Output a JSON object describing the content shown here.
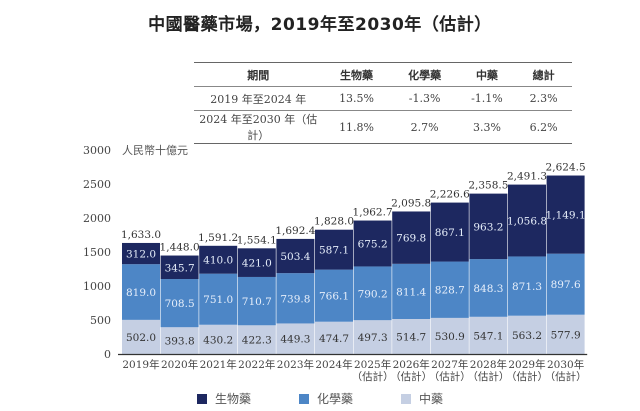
{
  "title": "中國醫藥市場，2019年至2030年（估計）",
  "growth_table": {
    "headers": [
      "期間",
      "生物藥",
      "化學藥",
      "中藥",
      "總計"
    ],
    "rows": [
      [
        "2019 年至2024 年",
        "13.5%",
        "-1.3%",
        "-1.1%",
        "2.3%"
      ],
      [
        "2024 年至2030 年（估計）",
        "11.8%",
        "2.7%",
        "3.3%",
        "6.2%"
      ]
    ]
  },
  "chart_data": {
    "type": "bar",
    "stacked": true,
    "title": "中國醫藥市場，2019年至2030年（估計）",
    "ylabel": "人民幣十億元",
    "xlabel": "",
    "ylim": [
      0,
      3000
    ],
    "yticks": [
      0,
      500,
      1000,
      1500,
      2000,
      2500,
      3000
    ],
    "grid": false,
    "legend": "bottom",
    "categories": [
      [
        "2019年"
      ],
      [
        "2020年"
      ],
      [
        "2021年"
      ],
      [
        "2022年"
      ],
      [
        "2023年"
      ],
      [
        "2024年"
      ],
      [
        "2025年",
        "（估計）"
      ],
      [
        "2026年",
        "（估計）"
      ],
      [
        "2027年",
        "（估計）"
      ],
      [
        "2028年",
        "（估計）"
      ],
      [
        "2029年",
        "（估計）"
      ],
      [
        "2030年",
        "（估計）"
      ]
    ],
    "series": [
      {
        "name": "中藥",
        "color": "#c5cfe3",
        "label_color": "#333333",
        "values": [
          502.0,
          393.8,
          430.2,
          422.3,
          449.3,
          474.7,
          497.3,
          514.7,
          530.9,
          547.1,
          563.2,
          577.9
        ],
        "labels": [
          "502.0",
          "393.8",
          "430.2",
          "422.3",
          "449.3",
          "474.7",
          "497.3",
          "514.7",
          "530.9",
          "547.1",
          "563.2",
          "577.9"
        ]
      },
      {
        "name": "化學藥",
        "color": "#4d86c6",
        "label_color": "#e6eefa",
        "values": [
          819.0,
          708.5,
          751.0,
          710.7,
          739.8,
          766.1,
          790.2,
          811.4,
          828.7,
          848.3,
          871.3,
          897.6
        ],
        "labels": [
          "819.0",
          "708.5",
          "751.0",
          "710.7",
          "739.8",
          "766.1",
          "790.2",
          "811.4",
          "828.7",
          "848.3",
          "871.3",
          "897.6"
        ]
      },
      {
        "name": "生物藥",
        "color": "#1d2860",
        "label_color": "#e6eefa",
        "values": [
          312.0,
          345.7,
          410.0,
          421.0,
          503.4,
          587.1,
          675.2,
          769.8,
          867.1,
          963.2,
          1056.8,
          1149.1
        ],
        "labels": [
          "312.0",
          "345.7",
          "410.0",
          "421.0",
          "503.4",
          "587.1",
          "675.2",
          "769.8",
          "867.1",
          "963.2",
          "1,056.8",
          "1,149.1"
        ]
      }
    ],
    "totals": [
      1633.0,
      1448.0,
      1591.2,
      1554.1,
      1692.4,
      1828.0,
      1962.7,
      2095.8,
      2226.6,
      2358.5,
      2491.3,
      2624.5
    ],
    "total_labels": [
      "1,633.0",
      "1,448.0",
      "1,591.2",
      "1,554.1",
      "1,692.4",
      "1,828.0",
      "1,962.7",
      "2,095.8",
      "2,226.6",
      "2,358.5",
      "2,491.3",
      "2,624.5"
    ]
  },
  "legend": [
    {
      "label": "生物藥",
      "color": "#1d2860"
    },
    {
      "label": "化學藥",
      "color": "#4d86c6"
    },
    {
      "label": "中藥",
      "color": "#c5cfe3"
    }
  ]
}
